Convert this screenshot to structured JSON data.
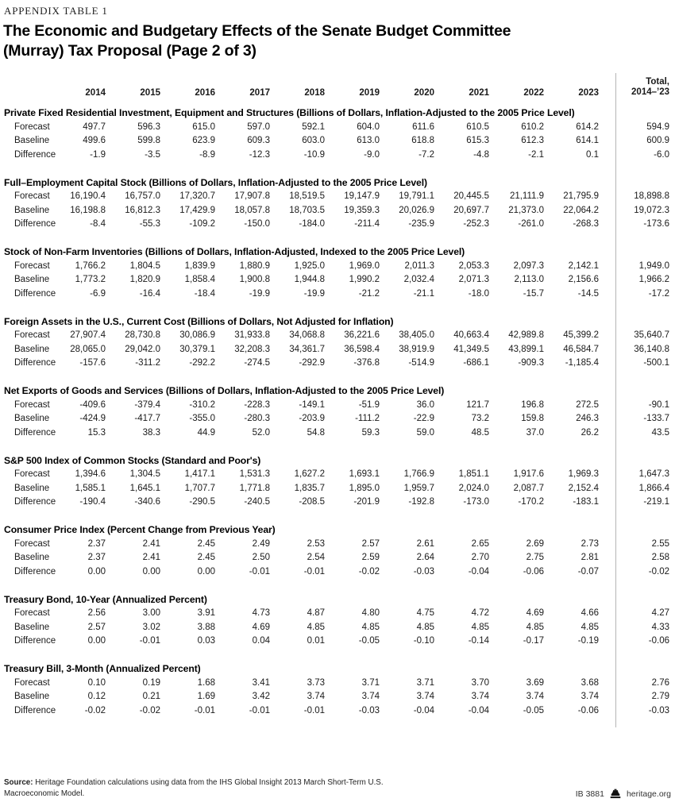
{
  "page": {
    "eyebrow": "APPENDIX TABLE 1",
    "title_line1": "The Economic and Budgetary Effects of the Senate Budget Committee",
    "title_line2": "(Murray) Tax Proposal (Page 2 of 3)"
  },
  "table": {
    "year_headers": [
      "2014",
      "2015",
      "2016",
      "2017",
      "2018",
      "2019",
      "2020",
      "2021",
      "2022",
      "2023"
    ],
    "total_header_lines": [
      "Total,",
      "2014–’23"
    ],
    "sections": [
      {
        "title": "Private Fixed Residential Investment, Equipment and Structures (Billions of Dollars, Inflation-Adjusted to the 2005 Price Level)",
        "rows": [
          {
            "label": "Forecast",
            "values": [
              "497.7",
              "596.3",
              "615.0",
              "597.0",
              "592.1",
              "604.0",
              "611.6",
              "610.5",
              "610.2",
              "614.2"
            ],
            "total": "594.9"
          },
          {
            "label": "Baseline",
            "values": [
              "499.6",
              "599.8",
              "623.9",
              "609.3",
              "603.0",
              "613.0",
              "618.8",
              "615.3",
              "612.3",
              "614.1"
            ],
            "total": "600.9"
          },
          {
            "label": "Difference",
            "values": [
              "-1.9",
              "-3.5",
              "-8.9",
              "-12.3",
              "-10.9",
              "-9.0",
              "-7.2",
              "-4.8",
              "-2.1",
              "0.1"
            ],
            "total": "-6.0"
          }
        ]
      },
      {
        "title": "Full–Employment Capital Stock (Billions of Dollars, Inflation-Adjusted to the 2005 Price Level)",
        "rows": [
          {
            "label": "Forecast",
            "values": [
              "16,190.4",
              "16,757.0",
              "17,320.7",
              "17,907.8",
              "18,519.5",
              "19,147.9",
              "19,791.1",
              "20,445.5",
              "21,111.9",
              "21,795.9"
            ],
            "total": "18,898.8"
          },
          {
            "label": "Baseline",
            "values": [
              "16,198.8",
              "16,812.3",
              "17,429.9",
              "18,057.8",
              "18,703.5",
              "19,359.3",
              "20,026.9",
              "20,697.7",
              "21,373.0",
              "22,064.2"
            ],
            "total": "19,072.3"
          },
          {
            "label": "Difference",
            "values": [
              "-8.4",
              "-55.3",
              "-109.2",
              "-150.0",
              "-184.0",
              "-211.4",
              "-235.9",
              "-252.3",
              "-261.0",
              "-268.3"
            ],
            "total": "-173.6"
          }
        ]
      },
      {
        "title": "Stock of Non-Farm Inventories (Billions of Dollars, Inflation-Adjusted, Indexed to the 2005 Price Level)",
        "rows": [
          {
            "label": "Forecast",
            "values": [
              "1,766.2",
              "1,804.5",
              "1,839.9",
              "1,880.9",
              "1,925.0",
              "1,969.0",
              "2,011.3",
              "2,053.3",
              "2,097.3",
              "2,142.1"
            ],
            "total": "1,949.0"
          },
          {
            "label": "Baseline",
            "values": [
              "1,773.2",
              "1,820.9",
              "1,858.4",
              "1,900.8",
              "1,944.8",
              "1,990.2",
              "2,032.4",
              "2,071.3",
              "2,113.0",
              "2,156.6"
            ],
            "total": "1,966.2"
          },
          {
            "label": "Difference",
            "values": [
              "-6.9",
              "-16.4",
              "-18.4",
              "-19.9",
              "-19.9",
              "-21.2",
              "-21.1",
              "-18.0",
              "-15.7",
              "-14.5"
            ],
            "total": "-17.2"
          }
        ]
      },
      {
        "title": "Foreign Assets in the U.S., Current Cost (Billions of Dollars, Not Adjusted for Inflation)",
        "rows": [
          {
            "label": "Forecast",
            "values": [
              "27,907.4",
              "28,730.8",
              "30,086.9",
              "31,933.8",
              "34,068.8",
              "36,221.6",
              "38,405.0",
              "40,663.4",
              "42,989.8",
              "45,399.2"
            ],
            "total": "35,640.7"
          },
          {
            "label": "Baseline",
            "values": [
              "28,065.0",
              "29,042.0",
              "30,379.1",
              "32,208.3",
              "34,361.7",
              "36,598.4",
              "38,919.9",
              "41,349.5",
              "43,899.1",
              "46,584.7"
            ],
            "total": "36,140.8"
          },
          {
            "label": "Difference",
            "values": [
              "-157.6",
              "-311.2",
              "-292.2",
              "-274.5",
              "-292.9",
              "-376.8",
              "-514.9",
              "-686.1",
              "-909.3",
              "-1,185.4"
            ],
            "total": "-500.1"
          }
        ]
      },
      {
        "title": "Net Exports of Goods and Services (Billions of Dollars, Inflation-Adjusted to the 2005 Price Level)",
        "rows": [
          {
            "label": "Forecast",
            "values": [
              "-409.6",
              "-379.4",
              "-310.2",
              "-228.3",
              "-149.1",
              "-51.9",
              "36.0",
              "121.7",
              "196.8",
              "272.5"
            ],
            "total": "-90.1"
          },
          {
            "label": "Baseline",
            "values": [
              "-424.9",
              "-417.7",
              "-355.0",
              "-280.3",
              "-203.9",
              "-111.2",
              "-22.9",
              "73.2",
              "159.8",
              "246.3"
            ],
            "total": "-133.7"
          },
          {
            "label": "Difference",
            "values": [
              "15.3",
              "38.3",
              "44.9",
              "52.0",
              "54.8",
              "59.3",
              "59.0",
              "48.5",
              "37.0",
              "26.2"
            ],
            "total": "43.5"
          }
        ]
      },
      {
        "title": "S&P 500 Index of Common Stocks (Standard and Poor's)",
        "rows": [
          {
            "label": "Forecast",
            "values": [
              "1,394.6",
              "1,304.5",
              "1,417.1",
              "1,531.3",
              "1,627.2",
              "1,693.1",
              "1,766.9",
              "1,851.1",
              "1,917.6",
              "1,969.3"
            ],
            "total": "1,647.3"
          },
          {
            "label": "Baseline",
            "values": [
              "1,585.1",
              "1,645.1",
              "1,707.7",
              "1,771.8",
              "1,835.7",
              "1,895.0",
              "1,959.7",
              "2,024.0",
              "2,087.7",
              "2,152.4"
            ],
            "total": "1,866.4"
          },
          {
            "label": "Difference",
            "values": [
              "-190.4",
              "-340.6",
              "-290.5",
              "-240.5",
              "-208.5",
              "-201.9",
              "-192.8",
              "-173.0",
              "-170.2",
              "-183.1"
            ],
            "total": "-219.1"
          }
        ]
      },
      {
        "title": "Consumer Price Index (Percent Change from Previous Year)",
        "rows": [
          {
            "label": "Forecast",
            "values": [
              "2.37",
              "2.41",
              "2.45",
              "2.49",
              "2.53",
              "2.57",
              "2.61",
              "2.65",
              "2.69",
              "2.73"
            ],
            "total": "2.55"
          },
          {
            "label": "Baseline",
            "values": [
              "2.37",
              "2.41",
              "2.45",
              "2.50",
              "2.54",
              "2.59",
              "2.64",
              "2.70",
              "2.75",
              "2.81"
            ],
            "total": "2.58"
          },
          {
            "label": "Difference",
            "values": [
              "0.00",
              "0.00",
              "0.00",
              "-0.01",
              "-0.01",
              "-0.02",
              "-0.03",
              "-0.04",
              "-0.06",
              "-0.07"
            ],
            "total": "-0.02"
          }
        ]
      },
      {
        "title": "Treasury Bond, 10-Year (Annualized Percent)",
        "rows": [
          {
            "label": "Forecast",
            "values": [
              "2.56",
              "3.00",
              "3.91",
              "4.73",
              "4.87",
              "4.80",
              "4.75",
              "4.72",
              "4.69",
              "4.66"
            ],
            "total": "4.27"
          },
          {
            "label": "Baseline",
            "values": [
              "2.57",
              "3.02",
              "3.88",
              "4.69",
              "4.85",
              "4.85",
              "4.85",
              "4.85",
              "4.85",
              "4.85"
            ],
            "total": "4.33"
          },
          {
            "label": "Difference",
            "values": [
              "0.00",
              "-0.01",
              "0.03",
              "0.04",
              "0.01",
              "-0.05",
              "-0.10",
              "-0.14",
              "-0.17",
              "-0.19"
            ],
            "total": "-0.06"
          }
        ]
      },
      {
        "title": "Treasury Bill, 3-Month (Annualized Percent)",
        "rows": [
          {
            "label": "Forecast",
            "values": [
              "0.10",
              "0.19",
              "1.68",
              "3.41",
              "3.73",
              "3.71",
              "3.71",
              "3.70",
              "3.69",
              "3.68"
            ],
            "total": "2.76"
          },
          {
            "label": "Baseline",
            "values": [
              "0.12",
              "0.21",
              "1.69",
              "3.42",
              "3.74",
              "3.74",
              "3.74",
              "3.74",
              "3.74",
              "3.74"
            ],
            "total": "2.79"
          },
          {
            "label": "Difference",
            "values": [
              "-0.02",
              "-0.02",
              "-0.01",
              "-0.01",
              "-0.01",
              "-0.03",
              "-0.04",
              "-0.04",
              "-0.05",
              "-0.06"
            ],
            "total": "-0.03"
          }
        ]
      }
    ]
  },
  "footer": {
    "source_label": "Source:",
    "source_text": " Heritage Foundation calculations using data from the IHS Global Insight 2013 March Short-Term U.S. Macroeconomic Model.",
    "report_id": "IB 3881",
    "site": "heritage.org",
    "logo_icon": "heritage-bell-icon"
  }
}
